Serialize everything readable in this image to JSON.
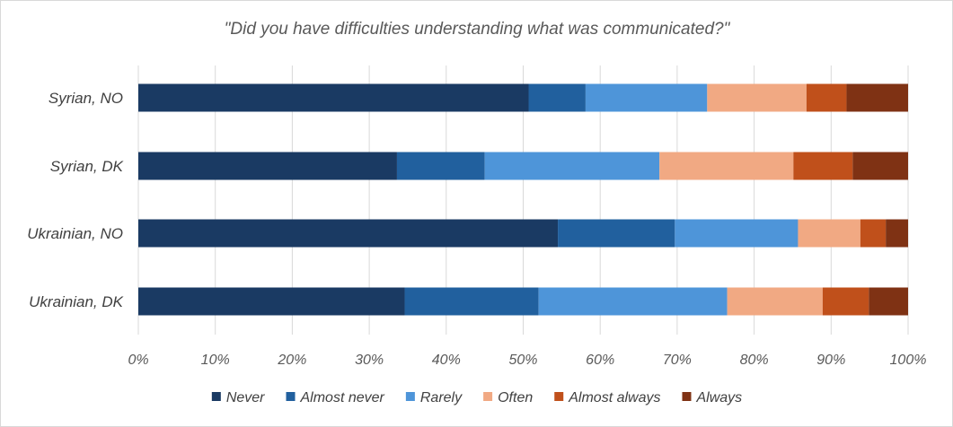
{
  "chart_data": {
    "type": "bar",
    "orientation": "horizontal",
    "stacked": "percent",
    "title": "\"Did you have difficulties understanding what was communicated?\"",
    "categories": [
      "Syrian, NO",
      "Syrian, DK",
      "Ukrainian, NO",
      "Ukrainian, DK"
    ],
    "xlim": [
      0,
      100
    ],
    "x_ticks": [
      "0%",
      "10%",
      "20%",
      "30%",
      "40%",
      "50%",
      "60%",
      "70%",
      "80%",
      "90%",
      "100%"
    ],
    "grid": true,
    "legend_position": "bottom",
    "series": [
      {
        "name": "Never",
        "color": "#1a3a63",
        "values": [
          50.7,
          33.6,
          54.5,
          34.6
        ]
      },
      {
        "name": "Almost never",
        "color": "#21609e",
        "values": [
          7.4,
          11.4,
          15.2,
          17.4
        ]
      },
      {
        "name": "Rarely",
        "color": "#4e95d9",
        "values": [
          15.8,
          22.7,
          16.0,
          24.5
        ]
      },
      {
        "name": "Often",
        "color": "#f1a983",
        "values": [
          12.9,
          17.4,
          8.1,
          12.4
        ]
      },
      {
        "name": "Almost always",
        "color": "#c0501b",
        "values": [
          5.2,
          7.7,
          3.3,
          6.0
        ]
      },
      {
        "name": "Always",
        "color": "#7f3214",
        "values": [
          8.0,
          7.2,
          2.9,
          5.1
        ]
      }
    ]
  }
}
